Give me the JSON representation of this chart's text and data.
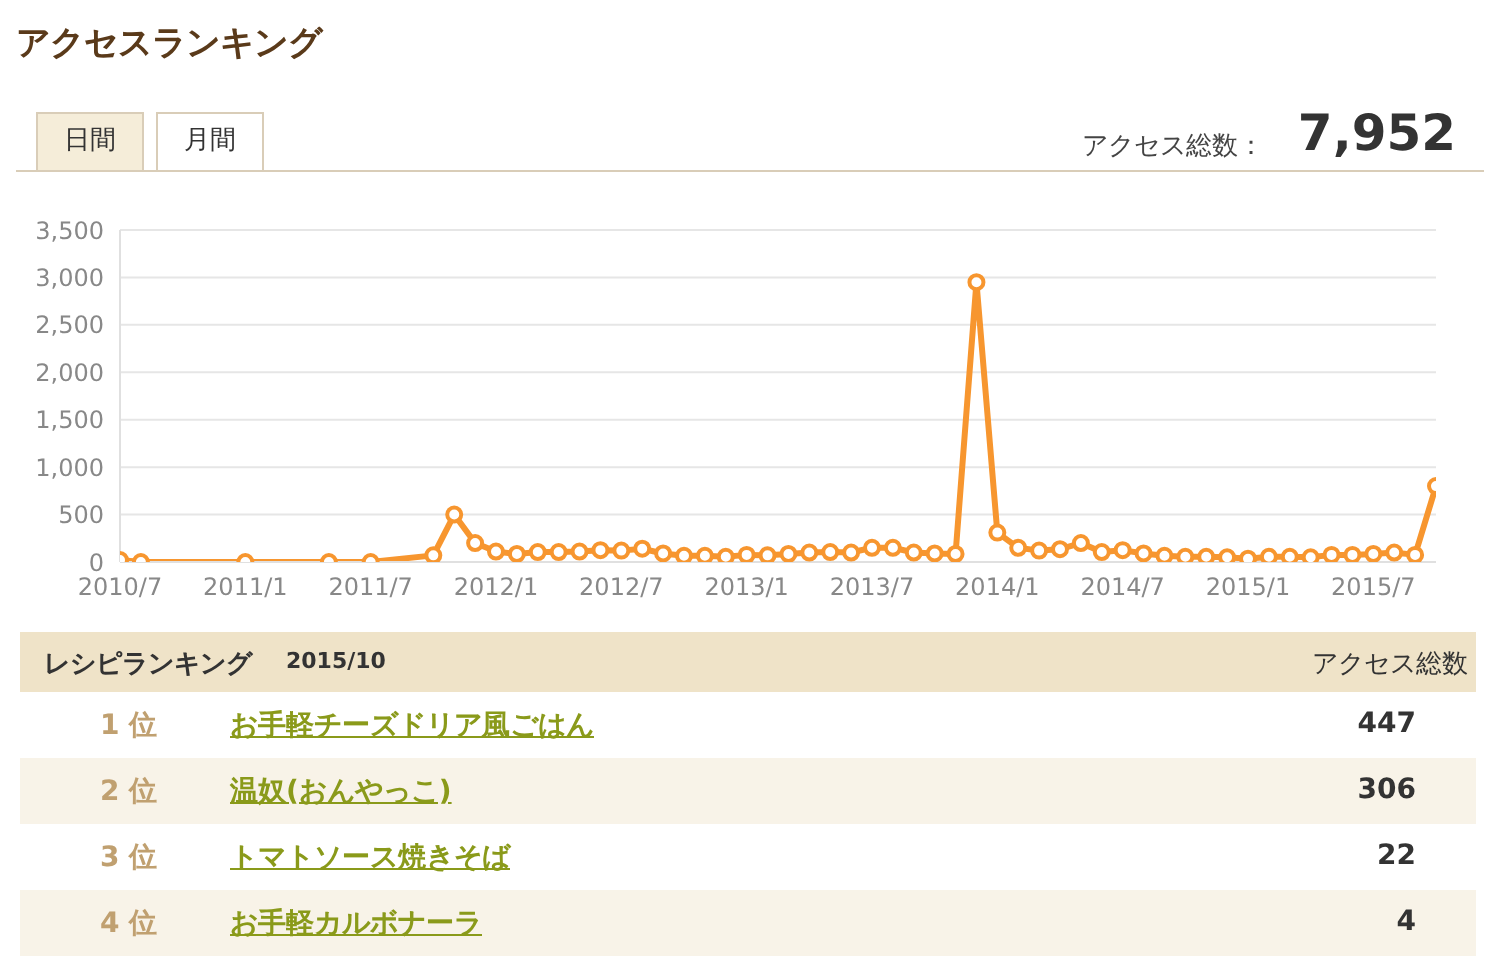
{
  "chart_data": {
    "type": "line",
    "title": "アクセスランキング",
    "annotations": [
      "日間",
      "月間",
      "アクセス総数：",
      "7,952",
      "レシピランキング",
      "2015/10",
      "アクセス総数",
      "1 位",
      "お手軽チーズドリア風ごはん",
      "447",
      "2 位",
      "温奴(おんやっこ)",
      "306",
      "3 位",
      "トマトソース焼きそば",
      "22",
      "4 位",
      "お手軽カルボナーラ",
      "4"
    ],
    "x": [
      "2010-07",
      "2010-08",
      "2011-01",
      "2011-05",
      "2011-07",
      "2011-10",
      "2011-11",
      "2011-12",
      "2012-01",
      "2012-02",
      "2012-03",
      "2012-04",
      "2012-05",
      "2012-06",
      "2012-07",
      "2012-08",
      "2012-09",
      "2012-10",
      "2012-11",
      "2012-12",
      "2013-01",
      "2013-02",
      "2013-03",
      "2013-04",
      "2013-05",
      "2013-06",
      "2013-07",
      "2013-08",
      "2013-09",
      "2013-10",
      "2013-11",
      "2013-12",
      "2014-01",
      "2014-02",
      "2014-03",
      "2014-04",
      "2014-05",
      "2014-06",
      "2014-07",
      "2014-08",
      "2014-09",
      "2014-10",
      "2014-11",
      "2014-12",
      "2015-01",
      "2015-02",
      "2015-03",
      "2015-04",
      "2015-05",
      "2015-06",
      "2015-07",
      "2015-08",
      "2015-09",
      "2015-10"
    ],
    "series": [
      {
        "color": "#f7962f",
        "values": [
          20,
          0,
          0,
          0,
          0,
          70,
          500,
          200,
          110,
          85,
          105,
          105,
          110,
          125,
          120,
          140,
          90,
          65,
          65,
          55,
          75,
          70,
          85,
          100,
          105,
          100,
          150,
          150,
          100,
          90,
          85,
          2950,
          310,
          150,
          120,
          135,
          200,
          105,
          125,
          90,
          65,
          55,
          55,
          50,
          35,
          55,
          55,
          50,
          75,
          75,
          85,
          100,
          75,
          800
        ]
      }
    ],
    "xlim": [
      "2010-07",
      "2015-10"
    ],
    "xticks": [
      {
        "value": "2010-07",
        "label": "2010/7"
      },
      {
        "value": "2011-01",
        "label": "2011/1"
      },
      {
        "value": "2011-07",
        "label": "2011/7"
      },
      {
        "value": "2012-01",
        "label": "2012/1"
      },
      {
        "value": "2012-07",
        "label": "2012/7"
      },
      {
        "value": "2013-01",
        "label": "2013/1"
      },
      {
        "value": "2013-07",
        "label": "2013/7"
      },
      {
        "value": "2014-01",
        "label": "2014/1"
      },
      {
        "value": "2014-07",
        "label": "2014/7"
      },
      {
        "value": "2015-01",
        "label": "2015/1"
      },
      {
        "value": "2015-07",
        "label": "2015/7"
      }
    ],
    "ylim": [
      0,
      3500
    ],
    "yticks": [
      0,
      {
        "value": 500,
        "label": "500"
      },
      {
        "value": 1000,
        "label": "1,000"
      },
      {
        "value": 1500,
        "label": "1,500"
      },
      {
        "value": 2000,
        "label": "2,000"
      },
      {
        "value": 2500,
        "label": "2,500"
      },
      {
        "value": 3000,
        "label": "3,000"
      },
      {
        "value": 3500,
        "label": "3,500"
      }
    ],
    "grid": "y",
    "marker": "circle",
    "line_style": "solid",
    "legend": false
  }
}
